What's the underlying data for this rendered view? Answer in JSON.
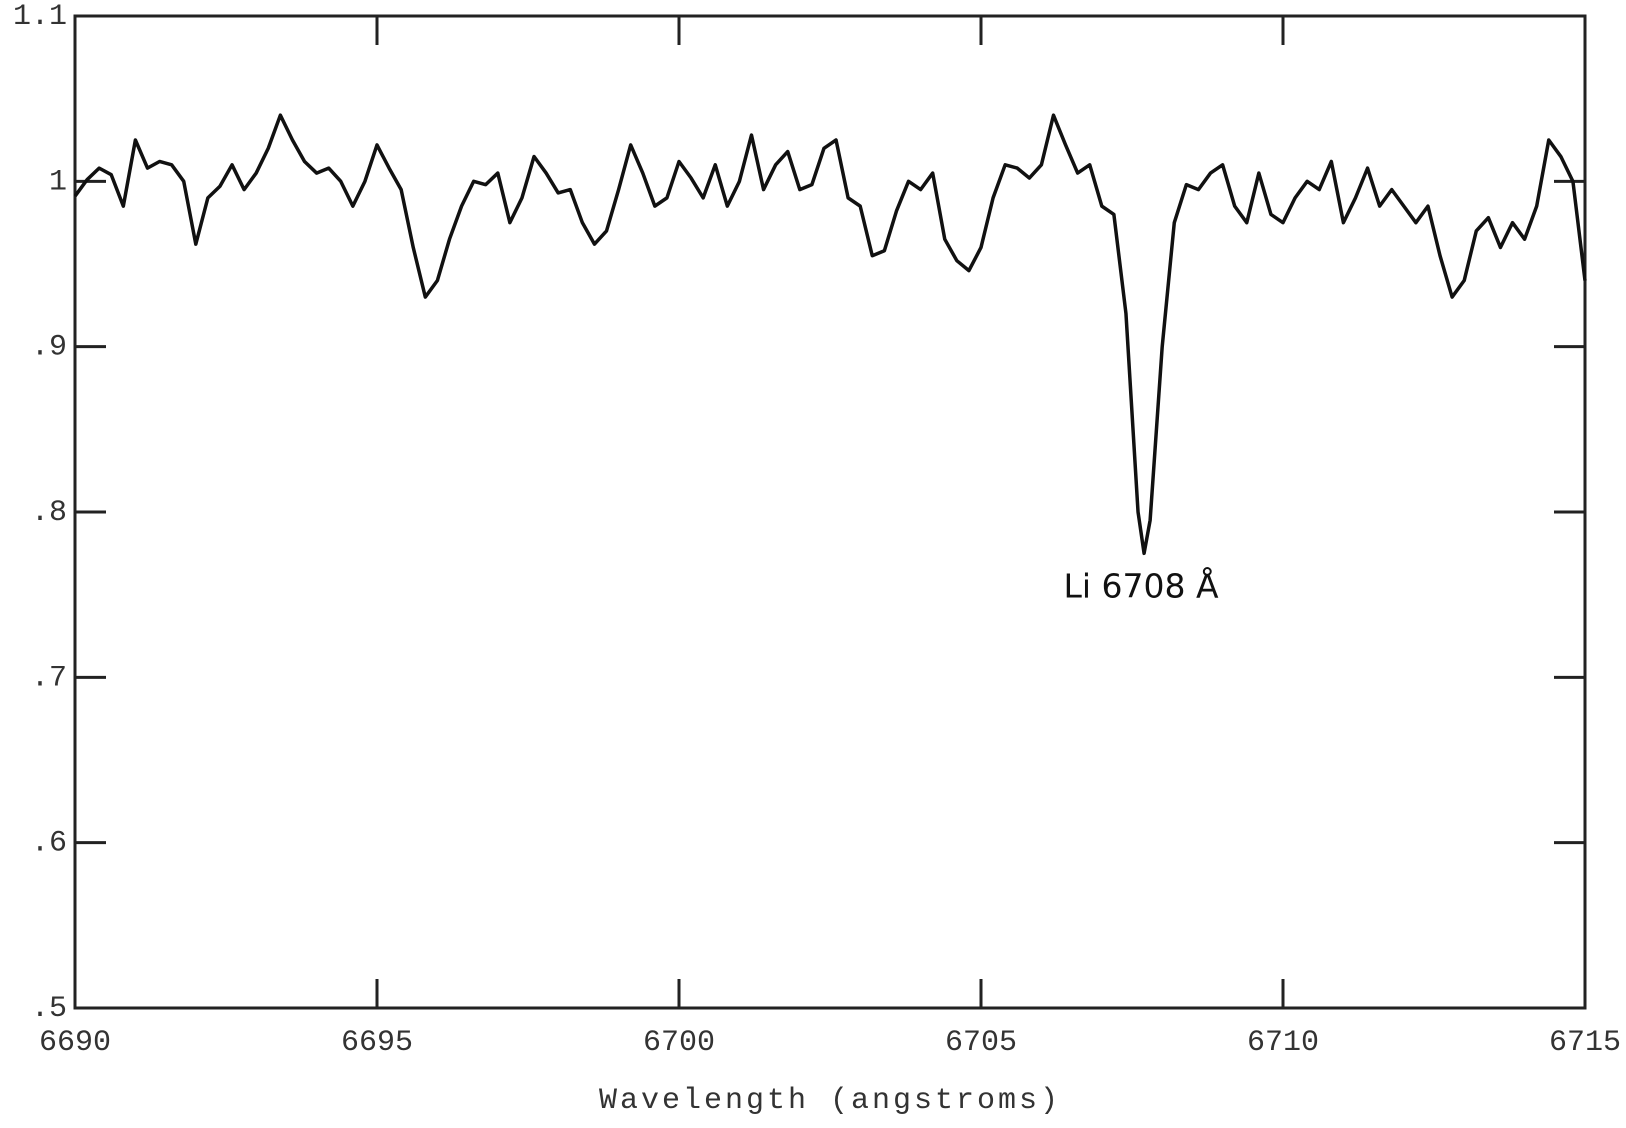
{
  "chart_data": {
    "type": "line",
    "x_label": "Wavelength (angstroms)",
    "annotation": "Li 6708 Å",
    "xlim": [
      6690,
      6715
    ],
    "xticks": [
      6690,
      6695,
      6700,
      6705,
      6710,
      6715
    ],
    "ylim": [
      0.5,
      1.1
    ],
    "yticks": [
      {
        "value": 0.5,
        "label": ".5"
      },
      {
        "value": 0.6,
        "label": ".6"
      },
      {
        "value": 0.7,
        "label": ".7"
      },
      {
        "value": 0.8,
        "label": ".8"
      },
      {
        "value": 0.9,
        "label": ".9"
      },
      1,
      1.1
    ],
    "x": [
      6690.0,
      6690.2,
      6690.4,
      6690.6,
      6690.8,
      6691.0,
      6691.2,
      6691.4,
      6691.6,
      6691.8,
      6692.0,
      6692.2,
      6692.4,
      6692.6,
      6692.8,
      6693.0,
      6693.2,
      6693.4,
      6693.6,
      6693.8,
      6694.0,
      6694.2,
      6694.4,
      6694.6,
      6694.8,
      6695.0,
      6695.2,
      6695.4,
      6695.6,
      6695.8,
      6696.0,
      6696.2,
      6696.4,
      6696.6,
      6696.8,
      6697.0,
      6697.2,
      6697.4,
      6697.6,
      6697.8,
      6698.0,
      6698.2,
      6698.4,
      6698.6,
      6698.8,
      6699.0,
      6699.2,
      6699.4,
      6699.6,
      6699.8,
      6700.0,
      6700.2,
      6700.4,
      6700.6,
      6700.8,
      6701.0,
      6701.2,
      6701.4,
      6701.6,
      6701.8,
      6702.0,
      6702.2,
      6702.4,
      6702.6,
      6702.8,
      6703.0,
      6703.2,
      6703.4,
      6703.6,
      6703.8,
      6704.0,
      6704.2,
      6704.4,
      6704.6,
      6704.8,
      6705.0,
      6705.2,
      6705.4,
      6705.6,
      6705.8,
      6706.0,
      6706.2,
      6706.4,
      6706.6,
      6706.8,
      6707.0,
      6707.2,
      6707.4,
      6707.6,
      6707.7,
      6707.8,
      6708.0,
      6708.2,
      6708.4,
      6708.6,
      6708.8,
      6709.0,
      6709.2,
      6709.4,
      6709.6,
      6709.8,
      6710.0,
      6710.2,
      6710.4,
      6710.6,
      6710.8,
      6711.0,
      6711.2,
      6711.4,
      6711.6,
      6711.8,
      6712.0,
      6712.2,
      6712.4,
      6712.6,
      6712.8,
      6713.0,
      6713.2,
      6713.4,
      6713.6,
      6713.8,
      6714.0,
      6714.2,
      6714.4,
      6714.6,
      6714.8,
      6715.0
    ],
    "series": [
      {
        "color": "#111111",
        "values": [
          0.991,
          1.001,
          1.008,
          1.004,
          0.985,
          1.025,
          1.008,
          1.012,
          1.01,
          1.0,
          0.962,
          0.99,
          0.997,
          1.01,
          0.995,
          1.005,
          1.02,
          1.04,
          1.025,
          1.012,
          1.005,
          1.008,
          1.0,
          0.985,
          1.0,
          1.022,
          1.008,
          0.995,
          0.96,
          0.93,
          0.94,
          0.965,
          0.985,
          1.0,
          0.998,
          1.005,
          0.975,
          0.99,
          1.015,
          1.005,
          0.993,
          0.995,
          0.975,
          0.962,
          0.97,
          0.995,
          1.022,
          1.005,
          0.985,
          0.99,
          1.012,
          1.002,
          0.99,
          1.01,
          0.985,
          1.0,
          1.028,
          0.995,
          1.01,
          1.018,
          0.995,
          0.998,
          1.02,
          1.025,
          0.99,
          0.985,
          0.955,
          0.958,
          0.982,
          1.0,
          0.995,
          1.005,
          0.965,
          0.952,
          0.946,
          0.96,
          0.99,
          1.01,
          1.008,
          1.002,
          1.01,
          1.04,
          1.022,
          1.005,
          1.01,
          0.985,
          0.98,
          0.92,
          0.8,
          0.775,
          0.795,
          0.9,
          0.975,
          0.998,
          0.995,
          1.005,
          1.01,
          0.985,
          0.975,
          1.005,
          0.98,
          0.975,
          0.99,
          1.0,
          0.995,
          1.012,
          0.975,
          0.99,
          1.008,
          0.985,
          0.995,
          0.985,
          0.975,
          0.985,
          0.955,
          0.93,
          0.94,
          0.97,
          0.978,
          0.96,
          0.975,
          0.965,
          0.985,
          1.025,
          1.015,
          1.0,
          0.94
        ]
      }
    ]
  }
}
